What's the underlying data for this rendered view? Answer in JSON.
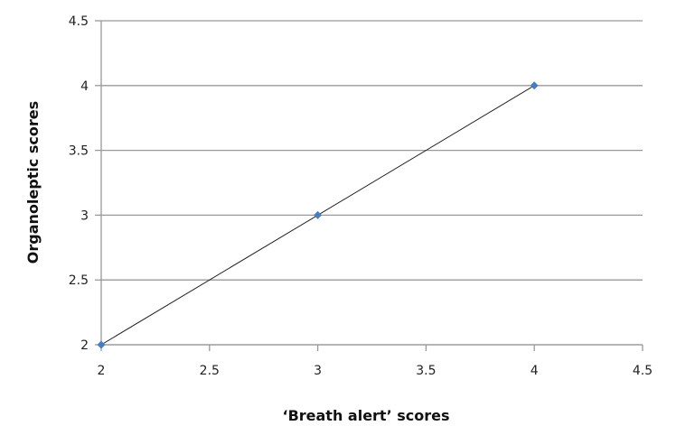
{
  "chart_data": {
    "type": "line",
    "title": "",
    "xlabel": "‘Breath alert’ scores",
    "ylabel": "Organoleptic scores",
    "xlim": [
      2,
      4.5
    ],
    "ylim": [
      2,
      4.5
    ],
    "xticks": [
      "2",
      "2.5",
      "3",
      "3.5",
      "4",
      "4.5"
    ],
    "yticks": [
      "2",
      "2.5",
      "3",
      "3.5",
      "4",
      "4.5"
    ],
    "grid": "horizontal",
    "series": [
      {
        "x": [
          2,
          3,
          4
        ],
        "y": [
          2,
          3,
          4
        ],
        "marker": "diamond",
        "marker_color": "#4a7ebb",
        "line_color": "#222222"
      }
    ]
  }
}
